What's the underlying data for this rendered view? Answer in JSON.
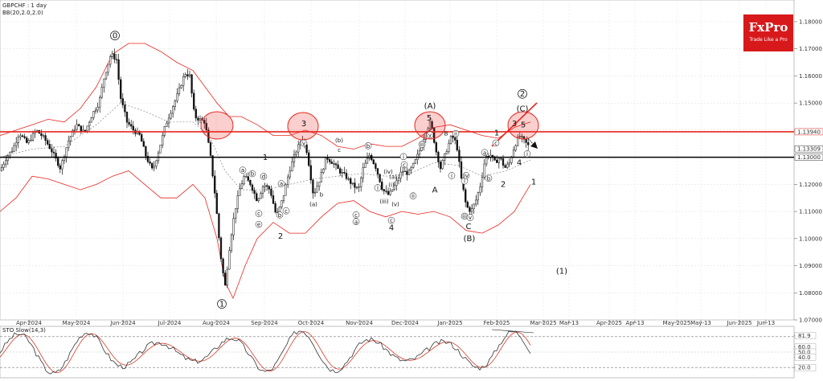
{
  "header": {
    "symbol_label": "GBPCHF : 1 day",
    "indicator_label": "BB(20,2.0,2.0)",
    "stoch_label": "STO Slow(14,3)"
  },
  "logo": {
    "main": "FxPro",
    "sub": "Trade Like a Pro"
  },
  "colors": {
    "price": "#111111",
    "band": "#e8261f",
    "bandMid": "#888888",
    "level": "#e8261f",
    "support": "#000000",
    "accent": "#d7191c",
    "stochK": "#333333",
    "stochD": "#d73a2b"
  },
  "chart_data": [
    {
      "type": "candlestick",
      "title": "GBPCHF : 1 day",
      "ylim": [
        1.07,
        1.188
      ],
      "yticks": [
        "1.18000",
        "1.17000",
        "1.16000",
        "1.15000",
        "1.14000",
        "1.12000",
        "1.11000",
        "1.10000",
        "1.09000",
        "1.08000",
        "1.07000"
      ],
      "y_markers": [
        {
          "label": "1.13940",
          "value": 1.1394
        },
        {
          "label": "1.13309",
          "value": 1.1331
        },
        {
          "label": "1.13000",
          "value": 1.13
        }
      ],
      "xticks": [
        "Apr-2024",
        "May-2024",
        "Jun-2024",
        "Jul-2024",
        "Aug-2024",
        "Sep-2024",
        "Oct-2024",
        "Nov-2024",
        "Dec-2024",
        "Jan-2025",
        "Feb-2025",
        "Mar-2025",
        "Mar-13",
        "Apr-2025",
        "Apr-13",
        "May-2025",
        "May-13",
        "Jun-2025",
        "Jun-13"
      ],
      "horizontal_levels": [
        {
          "value": 1.1394,
          "color": "#e8261f"
        },
        {
          "value": 1.13,
          "color": "#000000"
        }
      ],
      "price_path": [
        [
          0,
          1.125
        ],
        [
          8,
          1.13
        ],
        [
          16,
          1.133
        ],
        [
          24,
          1.139
        ],
        [
          34,
          1.135
        ],
        [
          45,
          1.14
        ],
        [
          55,
          1.137
        ],
        [
          65,
          1.132
        ],
        [
          75,
          1.126
        ],
        [
          85,
          1.136
        ],
        [
          95,
          1.142
        ],
        [
          105,
          1.139
        ],
        [
          115,
          1.146
        ],
        [
          123,
          1.15
        ],
        [
          130,
          1.16
        ],
        [
          138,
          1.168
        ],
        [
          145,
          1.166
        ],
        [
          150,
          1.152
        ],
        [
          158,
          1.143
        ],
        [
          166,
          1.14
        ],
        [
          174,
          1.138
        ],
        [
          182,
          1.13
        ],
        [
          190,
          1.125
        ],
        [
          198,
          1.133
        ],
        [
          206,
          1.142
        ],
        [
          214,
          1.148
        ],
        [
          222,
          1.154
        ],
        [
          230,
          1.161
        ],
        [
          236,
          1.16
        ],
        [
          242,
          1.145
        ],
        [
          248,
          1.144
        ],
        [
          255,
          1.143
        ],
        [
          262,
          1.13
        ],
        [
          268,
          1.115
        ],
        [
          274,
          1.095
        ],
        [
          280,
          1.082
        ],
        [
          286,
          1.098
        ],
        [
          292,
          1.11
        ],
        [
          298,
          1.118
        ],
        [
          304,
          1.123
        ],
        [
          312,
          1.12
        ],
        [
          320,
          1.114
        ],
        [
          328,
          1.12
        ],
        [
          336,
          1.118
        ],
        [
          344,
          1.108
        ],
        [
          352,
          1.115
        ],
        [
          360,
          1.125
        ],
        [
          368,
          1.132
        ],
        [
          376,
          1.137
        ],
        [
          382,
          1.132
        ],
        [
          390,
          1.116
        ],
        [
          398,
          1.122
        ],
        [
          406,
          1.13
        ],
        [
          414,
          1.128
        ],
        [
          422,
          1.125
        ],
        [
          430,
          1.123
        ],
        [
          438,
          1.12
        ],
        [
          446,
          1.118
        ],
        [
          452,
          1.126
        ],
        [
          460,
          1.131
        ],
        [
          468,
          1.126
        ],
        [
          476,
          1.118
        ],
        [
          484,
          1.116
        ],
        [
          492,
          1.12
        ],
        [
          500,
          1.125
        ],
        [
          508,
          1.124
        ],
        [
          516,
          1.128
        ],
        [
          524,
          1.134
        ],
        [
          530,
          1.14
        ],
        [
          536,
          1.143
        ],
        [
          542,
          1.133
        ],
        [
          548,
          1.126
        ],
        [
          556,
          1.133
        ],
        [
          562,
          1.138
        ],
        [
          568,
          1.135
        ],
        [
          574,
          1.122
        ],
        [
          580,
          1.112
        ],
        [
          586,
          1.11
        ],
        [
          592,
          1.114
        ],
        [
          598,
          1.12
        ],
        [
          604,
          1.13
        ],
        [
          610,
          1.131
        ],
        [
          616,
          1.128
        ],
        [
          622,
          1.13
        ],
        [
          628,
          1.126
        ],
        [
          634,
          1.128
        ],
        [
          640,
          1.134
        ],
        [
          646,
          1.138
        ],
        [
          652,
          1.136
        ],
        [
          658,
          1.134
        ]
      ],
      "bb_upper": [
        [
          0,
          1.138
        ],
        [
          20,
          1.14
        ],
        [
          40,
          1.142
        ],
        [
          60,
          1.144
        ],
        [
          80,
          1.143
        ],
        [
          100,
          1.148
        ],
        [
          120,
          1.156
        ],
        [
          140,
          1.168
        ],
        [
          160,
          1.172
        ],
        [
          180,
          1.172
        ],
        [
          200,
          1.169
        ],
        [
          220,
          1.165
        ],
        [
          240,
          1.162
        ],
        [
          255,
          1.156
        ],
        [
          270,
          1.15
        ],
        [
          285,
          1.145
        ],
        [
          300,
          1.145
        ],
        [
          320,
          1.142
        ],
        [
          340,
          1.138
        ],
        [
          360,
          1.138
        ],
        [
          380,
          1.14
        ],
        [
          400,
          1.138
        ],
        [
          420,
          1.134
        ],
        [
          440,
          1.133
        ],
        [
          460,
          1.135
        ],
        [
          480,
          1.134
        ],
        [
          500,
          1.134
        ],
        [
          520,
          1.137
        ],
        [
          540,
          1.141
        ],
        [
          560,
          1.142
        ],
        [
          580,
          1.14
        ],
        [
          600,
          1.138
        ],
        [
          620,
          1.137
        ],
        [
          640,
          1.141
        ],
        [
          660,
          1.143
        ]
      ],
      "bb_mid": [
        [
          0,
          1.13
        ],
        [
          40,
          1.133
        ],
        [
          80,
          1.134
        ],
        [
          120,
          1.142
        ],
        [
          150,
          1.15
        ],
        [
          180,
          1.147
        ],
        [
          210,
          1.143
        ],
        [
          240,
          1.143
        ],
        [
          260,
          1.138
        ],
        [
          280,
          1.125
        ],
        [
          300,
          1.118
        ],
        [
          330,
          1.118
        ],
        [
          360,
          1.12
        ],
        [
          390,
          1.122
        ],
        [
          420,
          1.123
        ],
        [
          450,
          1.124
        ],
        [
          480,
          1.123
        ],
        [
          510,
          1.124
        ],
        [
          540,
          1.128
        ],
        [
          570,
          1.127
        ],
        [
          600,
          1.123
        ],
        [
          630,
          1.125
        ],
        [
          660,
          1.129
        ]
      ],
      "bb_lower": [
        [
          0,
          1.11
        ],
        [
          20,
          1.115
        ],
        [
          40,
          1.123
        ],
        [
          60,
          1.122
        ],
        [
          80,
          1.12
        ],
        [
          100,
          1.118
        ],
        [
          120,
          1.12
        ],
        [
          140,
          1.123
        ],
        [
          160,
          1.125
        ],
        [
          180,
          1.12
        ],
        [
          200,
          1.115
        ],
        [
          220,
          1.115
        ],
        [
          240,
          1.12
        ],
        [
          255,
          1.115
        ],
        [
          270,
          1.1
        ],
        [
          280,
          1.084
        ],
        [
          290,
          1.078
        ],
        [
          305,
          1.09
        ],
        [
          320,
          1.1
        ],
        [
          340,
          1.106
        ],
        [
          360,
          1.102
        ],
        [
          380,
          1.102
        ],
        [
          400,
          1.108
        ],
        [
          420,
          1.113
        ],
        [
          440,
          1.114
        ],
        [
          460,
          1.11
        ],
        [
          480,
          1.108
        ],
        [
          500,
          1.11
        ],
        [
          520,
          1.109
        ],
        [
          540,
          1.11
        ],
        [
          560,
          1.108
        ],
        [
          580,
          1.103
        ],
        [
          600,
          1.102
        ],
        [
          620,
          1.105
        ],
        [
          640,
          1.11
        ],
        [
          660,
          1.12
        ]
      ]
    },
    {
      "type": "line",
      "title": "STO Slow(14,3)",
      "ylim": [
        0,
        100
      ],
      "yticks": [
        "81.9",
        "60.0",
        "50.0",
        "40.0",
        "20.0"
      ],
      "levels": [
        80,
        20
      ]
    }
  ],
  "annotations": {
    "circled": [
      {
        "label": "0",
        "x": 143,
        "price": 1.174
      },
      {
        "label": "1",
        "x": 276,
        "price": 1.075
      },
      {
        "label": "2",
        "x": 650,
        "price": 1.1525
      }
    ],
    "plain": [
      {
        "label": "(A)",
        "x": 535,
        "price": 1.148
      },
      {
        "label": "5",
        "x": 534,
        "price": 1.1435
      },
      {
        "label": "3",
        "x": 378,
        "price": 1.1415
      },
      {
        "label": "(C)",
        "x": 650,
        "price": 1.147
      },
      {
        "label": "5",
        "x": 651,
        "price": 1.141
      },
      {
        "label": "3",
        "x": 640,
        "price": 1.1415
      },
      {
        "label": "1",
        "x": 618,
        "price": 1.138
      },
      {
        "label": "4",
        "x": 646,
        "price": 1.127
      },
      {
        "label": "2",
        "x": 626,
        "price": 1.119
      },
      {
        "label": "1",
        "x": 664,
        "price": 1.12
      },
      {
        "label": "A",
        "x": 541,
        "price": 1.117
      },
      {
        "label": "C",
        "x": 583,
        "price": 1.1035
      },
      {
        "label": "(B)",
        "x": 584,
        "price": 1.099
      },
      {
        "label": "2",
        "x": 349,
        "price": 1.1
      },
      {
        "label": "4",
        "x": 487,
        "price": 1.103
      },
      {
        "label": "(1)",
        "x": 699,
        "price": 1.087
      },
      {
        "label": "1",
        "x": 330,
        "price": 1.129
      }
    ],
    "small_circled": [
      {
        "label": "a",
        "x": 302,
        "price": 1.1245
      },
      {
        "label": "b",
        "x": 314,
        "price": 1.1232
      },
      {
        "label": "c",
        "x": 322,
        "price": 1.1085
      },
      {
        "label": "d",
        "x": 328,
        "price": 1.1222
      },
      {
        "label": "e",
        "x": 322,
        "price": 1.1045
      },
      {
        "label": "a",
        "x": 350,
        "price": 1.1195
      },
      {
        "label": "b",
        "x": 348,
        "price": 1.108
      },
      {
        "label": "c",
        "x": 356,
        "price": 1.1095
      },
      {
        "label": "v",
        "x": 378,
        "price": 1.1345
      },
      {
        "label": "b",
        "x": 458,
        "price": 1.1335
      },
      {
        "label": "i",
        "x": 470,
        "price": 1.118
      },
      {
        "label": "c",
        "x": 443,
        "price": 1.108
      },
      {
        "label": "a",
        "x": 443,
        "price": 1.1055
      },
      {
        "label": "c",
        "x": 487,
        "price": 1.106
      },
      {
        "label": "i",
        "x": 502,
        "price": 1.1295
      },
      {
        "label": "c",
        "x": 503,
        "price": 1.1265
      },
      {
        "label": "ii",
        "x": 514,
        "price": 1.115
      },
      {
        "label": "v",
        "x": 535,
        "price": 1.1375
      },
      {
        "label": "iii",
        "x": 525,
        "price": 1.134
      },
      {
        "label": "ii",
        "x": 567,
        "price": 1.138
      },
      {
        "label": "i",
        "x": 562,
        "price": 1.1225
      },
      {
        "label": "i",
        "x": 578,
        "price": 1.1205
      },
      {
        "label": "iv",
        "x": 580,
        "price": 1.1225
      },
      {
        "label": "iii",
        "x": 578,
        "price": 1.1075
      },
      {
        "label": "v",
        "x": 585,
        "price": 1.107
      },
      {
        "label": "a",
        "x": 603,
        "price": 1.131
      },
      {
        "label": "b",
        "x": 608,
        "price": 1.1215
      },
      {
        "label": "c",
        "x": 617,
        "price": 1.1345
      },
      {
        "label": "i",
        "x": 656,
        "price": 1.1305
      }
    ],
    "small_plain": [
      {
        "label": "b",
        "x": 400,
        "price": 1.1155
      },
      {
        "label": "(a)",
        "x": 390,
        "price": 1.112
      },
      {
        "label": "(b)",
        "x": 422,
        "price": 1.1355
      },
      {
        "label": "c",
        "x": 422,
        "price": 1.132
      },
      {
        "label": "(iv)",
        "x": 483,
        "price": 1.124
      },
      {
        "label": "(iii)",
        "x": 478,
        "price": 1.113
      },
      {
        "label": "(v)",
        "x": 492,
        "price": 1.112
      },
      {
        "label": "(a)",
        "x": 489,
        "price": 1.122
      },
      {
        "label": "(i)",
        "x": 487,
        "price": 1.119
      },
      {
        "label": "B",
        "x": 555,
        "price": 1.138
      },
      {
        "label": "c",
        "x": 309,
        "price": 1.121
      }
    ]
  }
}
